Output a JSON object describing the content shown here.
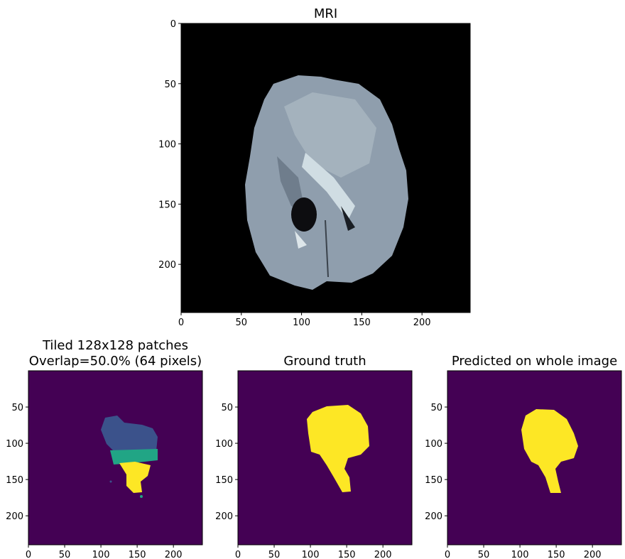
{
  "chart_data": [
    {
      "type": "image",
      "title": "MRI",
      "xlim": [
        0,
        240
      ],
      "ylim": [
        240,
        0
      ],
      "xticks": [
        0,
        50,
        100,
        150,
        200
      ],
      "yticks": [
        0,
        50,
        100,
        150,
        200
      ]
    },
    {
      "type": "image",
      "title": [
        "Tiled 128x128 patches",
        "Overlap=50.0% (64 pixels)"
      ],
      "xlim": [
        0,
        240
      ],
      "ylim": [
        240,
        0
      ],
      "xticks": [
        0,
        50,
        100,
        150,
        200
      ],
      "yticks": [
        50,
        100,
        150,
        200
      ]
    },
    {
      "type": "image",
      "title": "Ground truth",
      "xlim": [
        0,
        240
      ],
      "ylim": [
        240,
        0
      ],
      "xticks": [
        0,
        50,
        100,
        150,
        200
      ],
      "yticks": [
        50,
        100,
        150,
        200
      ]
    },
    {
      "type": "image",
      "title": "Predicted on whole image",
      "xlim": [
        0,
        240
      ],
      "ylim": [
        240,
        0
      ],
      "xticks": [
        0,
        50,
        100,
        150,
        200
      ],
      "yticks": [
        50,
        100,
        150,
        200
      ]
    }
  ]
}
